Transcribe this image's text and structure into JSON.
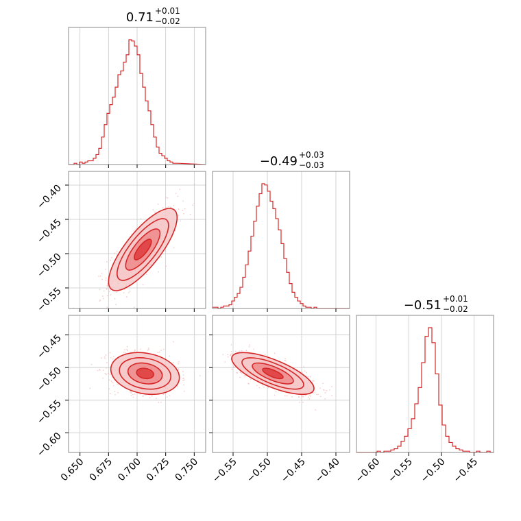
{
  "chart_data": {
    "type": "corner",
    "colors": {
      "main": "#d62728",
      "fill_light": "#f6c9c9",
      "fill_mid": "#ee8a8b",
      "fill_dark": "#dd3b3c",
      "grid": "#c8c8c8",
      "frame": "#888888",
      "scatter": "#f3b8b8"
    },
    "grid": true,
    "parameters": [
      {
        "range": [
          0.64,
          0.76
        ],
        "ticks": [
          0.65,
          0.675,
          0.7,
          0.725,
          0.75
        ],
        "tick_labels": [
          "0.650",
          "0.675",
          "0.700",
          "0.725",
          "0.750"
        ],
        "title": {
          "median": "0.71",
          "plus": "+0.01",
          "minus": "−0.02"
        },
        "hist": {
          "edges_start": 0.64,
          "bin_width": 0.0024,
          "counts": [
            0,
            0,
            1,
            0,
            2,
            1,
            2,
            3,
            3,
            5,
            8,
            13,
            22,
            32,
            41,
            48,
            54,
            62,
            72,
            75,
            82,
            88,
            100,
            99,
            95,
            88,
            73,
            62,
            51,
            43,
            32,
            22,
            14,
            9,
            7,
            5,
            3,
            2,
            1,
            1
          ]
        }
      },
      {
        "range": [
          -0.58,
          -0.38
        ],
        "ticks": [
          -0.55,
          -0.5,
          -0.45,
          -0.4
        ],
        "tick_labels": [
          "−0.55",
          "−0.50",
          "−0.45",
          "−0.40"
        ],
        "title": {
          "median": "−0.49",
          "plus": "+0.03",
          "minus": "−0.03"
        },
        "hist": {
          "edges_start": -0.58,
          "bin_width": 0.004,
          "counts": [
            1,
            1,
            0,
            1,
            2,
            2,
            3,
            6,
            9,
            12,
            17,
            25,
            35,
            46,
            58,
            70,
            82,
            92,
            100,
            99,
            94,
            86,
            80,
            72,
            63,
            52,
            40,
            29,
            20,
            13,
            9,
            6,
            4,
            2,
            1,
            1,
            0,
            1,
            0,
            0
          ]
        }
      },
      {
        "range": [
          -0.63,
          -0.42
        ],
        "ticks": [
          -0.6,
          -0.55,
          -0.5,
          -0.45
        ],
        "tick_labels": [
          "−0.60",
          "−0.55",
          "−0.50",
          "−0.45"
        ],
        "title": {
          "median": "−0.51",
          "plus": "+0.01",
          "minus": "−0.02"
        },
        "hist": {
          "edges_start": -0.63,
          "bin_width": 0.00525,
          "counts": [
            0,
            0,
            0,
            0,
            0,
            0,
            1,
            0,
            1,
            1,
            2,
            3,
            5,
            9,
            13,
            19,
            27,
            39,
            52,
            72,
            93,
            100,
            88,
            63,
            38,
            22,
            13,
            8,
            5,
            3,
            2,
            1,
            1,
            0,
            0,
            1,
            0,
            0,
            1,
            0
          ]
        }
      }
    ],
    "pairs": [
      {
        "x": 0,
        "y": 1,
        "center": [
          0.705,
          -0.494
        ],
        "sigma": [
          0.015,
          0.03
        ],
        "rho": 0.78
      },
      {
        "x": 0,
        "y": 2,
        "center": [
          0.707,
          -0.509
        ],
        "sigma": [
          0.015,
          0.016
        ],
        "rho": -0.2
      },
      {
        "x": 1,
        "y": 2,
        "center": [
          -0.492,
          -0.509
        ],
        "sigma": [
          0.03,
          0.016
        ],
        "rho": -0.72
      }
    ],
    "contour_levels_sigma": [
      0.5,
      1.0,
      1.5,
      2.0
    ]
  }
}
